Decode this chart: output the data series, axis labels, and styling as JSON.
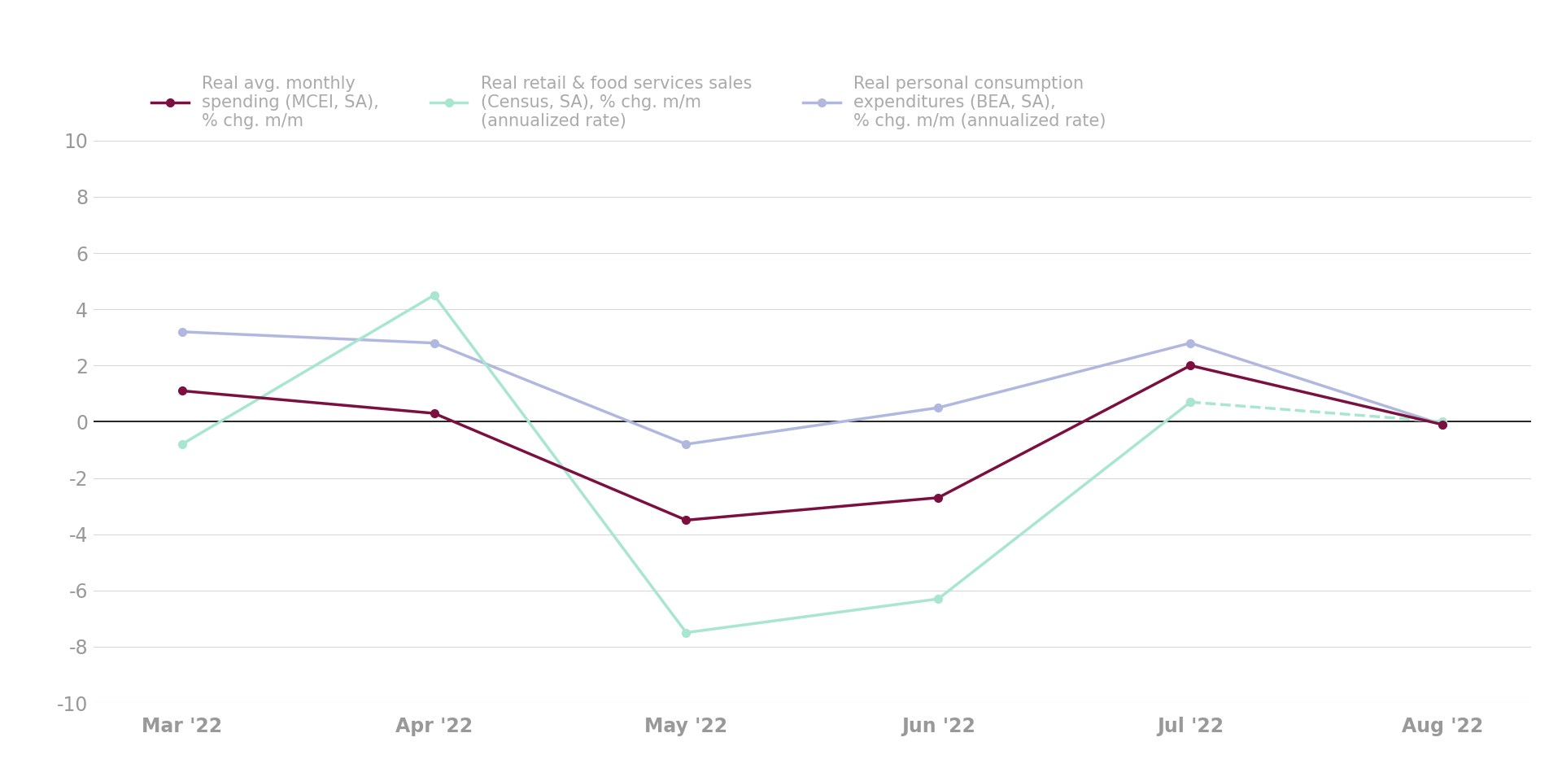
{
  "x_labels": [
    "Mar '22",
    "Apr '22",
    "May '22",
    "Jun '22",
    "Jul '22",
    "Aug '22"
  ],
  "mcei": [
    1.1,
    0.3,
    -3.5,
    -2.7,
    2.0,
    -0.1
  ],
  "retail": [
    -0.8,
    4.5,
    -7.5,
    -6.3,
    0.7,
    0.0
  ],
  "retail_solid_idx": [
    0,
    1,
    2,
    3,
    4
  ],
  "retail_dashed_idx": [
    4,
    5
  ],
  "pce": [
    3.2,
    2.8,
    -0.8,
    0.5,
    2.8,
    -0.1
  ],
  "mcei_color": "#7b1040",
  "retail_color": "#a8e6cf",
  "pce_color": "#b0b8e0",
  "ylim": [
    -10,
    10
  ],
  "yticks": [
    -10,
    -8,
    -6,
    -4,
    -2,
    0,
    2,
    4,
    6,
    8,
    10
  ],
  "legend_mcei": "Real avg. monthly\nspending (MCEI, SA),\n% chg. m/m",
  "legend_retail": "Real retail & food services sales\n(Census, SA), % chg. m/m\n(annualized rate)",
  "legend_pce": "Real personal consumption\nexpenditures (BEA, SA),\n% chg. m/m (annualized rate)",
  "bg_color": "#ffffff",
  "grid_color": "#d8d8d8",
  "zero_line_color": "#000000",
  "tick_label_color": "#999999",
  "legend_text_color": "#aaaaaa",
  "marker_size": 7,
  "line_width": 2.5,
  "tick_fontsize": 17,
  "legend_fontsize": 15
}
